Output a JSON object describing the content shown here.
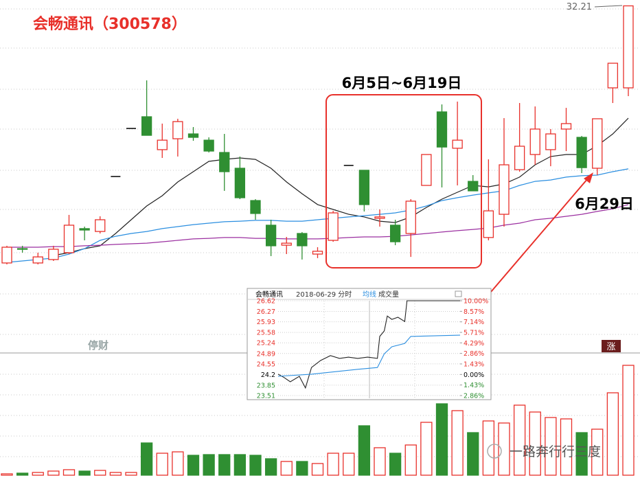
{
  "chart_data": [
    {
      "type": "candlestick",
      "title": "会畅通讯（300578）",
      "period_label": "6月5日~6月19日",
      "day_label": "6月29日",
      "up_color": "#e8302a",
      "down_color": "#2f8f32",
      "flat_color": "#000000",
      "ylim": [
        18.22,
        32.5
      ],
      "open": [
        19.48,
        20.19,
        19.48,
        19.65,
        19.99,
        21.18,
        21.04,
        23.76,
        26.14,
        26.72,
        25.09,
        25.63,
        25.87,
        25.56,
        24.95,
        24.17,
        22.57,
        21.35,
        20.36,
        20.94,
        19.92,
        20.6,
        24.31,
        24.07,
        21.69,
        21.35,
        20.94,
        23.32,
        26.96,
        25.16,
        23.52,
        20.74,
        21.89,
        24.1,
        24.85,
        25.09,
        26.11,
        25.7,
        24.17,
        28.15,
        28.15
      ],
      "high": [
        20.33,
        20.33,
        19.99,
        20.33,
        21.86,
        21.28,
        21.79,
        23.76,
        26.14,
        28.52,
        26.38,
        26.62,
        26.21,
        25.7,
        25.87,
        24.75,
        22.64,
        21.62,
        20.77,
        21.01,
        20.26,
        22.06,
        24.31,
        24.07,
        22.13,
        21.62,
        22.64,
        24.85,
        27.33,
        27.47,
        23.83,
        24.61,
        26.65,
        27.4,
        27.23,
        26.11,
        27.16,
        25.77,
        26.62,
        29.37,
        32.21
      ],
      "low": [
        19.41,
        19.99,
        19.41,
        19.58,
        19.92,
        20.6,
        20.94,
        23.76,
        26.14,
        25.8,
        24.68,
        24.75,
        25.53,
        24.95,
        23.05,
        22.64,
        21.62,
        19.82,
        19.92,
        19.65,
        19.72,
        20.53,
        24.31,
        22.03,
        21.28,
        20.36,
        19.78,
        23.32,
        23.22,
        23.32,
        23.05,
        20.6,
        21.28,
        24.0,
        24.34,
        24.27,
        25.02,
        23.93,
        23.83,
        27.4,
        27.74
      ],
      "close": [
        20.26,
        20.16,
        19.78,
        20.16,
        21.35,
        21.11,
        21.62,
        23.76,
        26.14,
        25.8,
        25.56,
        26.48,
        25.7,
        25.02,
        24.0,
        22.71,
        21.93,
        20.33,
        20.46,
        20.33,
        20.06,
        21.96,
        24.31,
        22.37,
        21.76,
        20.53,
        22.54,
        24.85,
        25.22,
        25.56,
        23.05,
        22.06,
        24.34,
        25.26,
        26.11,
        25.87,
        26.38,
        24.2,
        26.62,
        29.37,
        32.21
      ],
      "lines": [
        {
          "color": "#222222",
          "values": [
            null,
            null,
            null,
            19.85,
            19.99,
            20.19,
            20.33,
            20.94,
            21.62,
            22.3,
            22.81,
            23.49,
            24.0,
            24.51,
            24.61,
            24.68,
            24.61,
            24.17,
            23.49,
            22.91,
            22.37,
            22.13,
            21.89,
            21.76,
            21.55,
            21.48,
            21.76,
            22.23,
            22.64,
            22.98,
            23.32,
            23.25,
            23.39,
            23.73,
            24.34,
            24.75,
            24.85,
            24.85,
            25.29,
            25.87,
            26.65
          ]
        },
        {
          "color": "#2a8ee0",
          "values": [
            19.51,
            19.58,
            19.65,
            19.72,
            19.92,
            20.19,
            20.6,
            20.8,
            20.94,
            21.04,
            21.18,
            21.28,
            21.38,
            21.45,
            21.52,
            21.55,
            21.59,
            21.59,
            21.55,
            21.55,
            21.62,
            21.69,
            21.76,
            21.82,
            21.89,
            21.96,
            22.1,
            22.3,
            22.57,
            22.71,
            22.84,
            22.95,
            23.05,
            23.32,
            23.52,
            23.59,
            23.73,
            23.8,
            23.83,
            24.0,
            24.14
          ]
        },
        {
          "color": "#9b2fa0",
          "values": [
            20.26,
            20.26,
            20.26,
            20.29,
            20.29,
            20.33,
            20.36,
            20.4,
            20.43,
            20.46,
            20.53,
            20.6,
            20.67,
            20.7,
            20.74,
            20.74,
            20.7,
            20.7,
            20.67,
            20.67,
            20.67,
            20.7,
            20.74,
            20.77,
            20.77,
            20.8,
            20.87,
            20.94,
            21.01,
            21.08,
            21.14,
            21.21,
            21.35,
            21.45,
            21.62,
            21.69,
            21.79,
            21.89,
            22.03,
            22.16,
            22.37
          ]
        }
      ],
      "badge": "涨",
      "logo": "停财",
      "watermark": "一路奔行行三度"
    },
    {
      "type": "volume",
      "ylim": [
        0,
        170
      ],
      "values": [
        2,
        3,
        4,
        6,
        8,
        6,
        7,
        4,
        4,
        47,
        32,
        34,
        29,
        30,
        30,
        30,
        29,
        24,
        20,
        20,
        17,
        32,
        32,
        72,
        40,
        32,
        44,
        77,
        104,
        94,
        62,
        79,
        76,
        102,
        92,
        84,
        82,
        62,
        67,
        120,
        160
      ]
    },
    {
      "type": "line",
      "title": "会畅通讯",
      "subtitle": "2018-06-29 分时",
      "extra_label": "成交量",
      "xlim": [
        0,
        240
      ],
      "ylim": [
        23.51,
        26.62
      ],
      "y2lim": [
        -2.86,
        10
      ],
      "up_color": "#e8302a",
      "down_color": "#2f8f32",
      "yticks": [
        26.62,
        26.27,
        25.93,
        25.58,
        25.24,
        24.89,
        24.55,
        24.2,
        23.85,
        23.51
      ],
      "y2ticks": [
        {
          "value": 10,
          "label": "10.00%"
        },
        {
          "value": 8.57,
          "label": "8.57%"
        },
        {
          "value": 7.14,
          "label": "7.14%"
        },
        {
          "value": 5.71,
          "label": "5.71%"
        },
        {
          "value": 4.29,
          "label": "4.29%"
        },
        {
          "value": 2.86,
          "label": "2.86%"
        },
        {
          "value": 1.43,
          "label": "1.43%"
        },
        {
          "value": 0,
          "label": "0.00%"
        },
        {
          "value": -1.43,
          "label": "1.43%"
        },
        {
          "value": -2.86,
          "label": "2.86%"
        }
      ],
      "series": [
        {
          "color": "#222222",
          "x": [
            0,
            8,
            16,
            28,
            36,
            44,
            56,
            69,
            81,
            93,
            105,
            118,
            131,
            134,
            140,
            144,
            150,
            158,
            167,
            170,
            240
          ],
          "values": [
            24.21,
            24.1,
            23.96,
            24.14,
            23.76,
            24.43,
            24.66,
            24.82,
            24.73,
            24.77,
            24.73,
            24.77,
            24.73,
            25.45,
            25.63,
            26.12,
            26.01,
            26.08,
            25.94,
            26.62,
            26.62
          ]
        },
        {
          "name": "均线",
          "color": "#2a8ee0",
          "x": [
            0,
            44,
            105,
            131,
            140,
            150,
            167,
            175,
            240
          ],
          "values": [
            24.14,
            24.21,
            24.37,
            24.43,
            24.88,
            25.11,
            25.22,
            25.45,
            25.49
          ]
        }
      ]
    }
  ]
}
